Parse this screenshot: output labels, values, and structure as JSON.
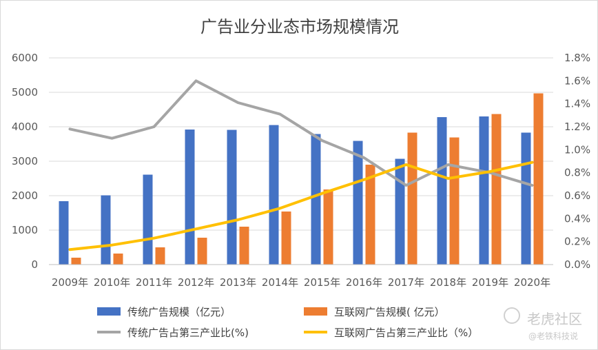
{
  "chart_data": {
    "type": "bar",
    "title": "广告业分业态市场规模情况",
    "categories": [
      "2009年",
      "2010年",
      "2011年",
      "2012年",
      "2013年",
      "2014年",
      "2015年",
      "2016年",
      "2017年",
      "2018年",
      "2019年",
      "2020年"
    ],
    "series": [
      {
        "name": "传统广告规模（亿元）",
        "kind": "bar",
        "axis": "left",
        "color": "#4472c4",
        "values": [
          1840,
          2010,
          2610,
          3920,
          3910,
          4050,
          3790,
          3590,
          3070,
          4280,
          4300,
          3830
        ]
      },
      {
        "name": "互联网广告规模( 亿元）",
        "kind": "bar",
        "axis": "left",
        "color": "#ed7d31",
        "values": [
          200,
          320,
          500,
          780,
          1100,
          1540,
          2180,
          2900,
          3830,
          3690,
          4370,
          4970
        ]
      },
      {
        "name": "传统广告占第三产业比(%)",
        "kind": "line",
        "axis": "right",
        "color": "#a5a5a5",
        "values": [
          1.18,
          1.1,
          1.2,
          1.6,
          1.41,
          1.31,
          1.08,
          0.93,
          0.69,
          0.87,
          0.8,
          0.69
        ]
      },
      {
        "name": "互联网广告占第三产业比（%）",
        "kind": "line",
        "axis": "right",
        "color": "#ffc000",
        "values": [
          0.13,
          0.17,
          0.23,
          0.31,
          0.39,
          0.49,
          0.62,
          0.74,
          0.87,
          0.75,
          0.81,
          0.89
        ]
      }
    ],
    "y_left": {
      "min": 0,
      "max": 6000,
      "ticks": [
        "0",
        "1000",
        "2000",
        "3000",
        "4000",
        "5000",
        "6000"
      ]
    },
    "y_right": {
      "min": 0,
      "max": 1.8,
      "ticks": [
        "0.0%",
        "0.2%",
        "0.4%",
        "0.6%",
        "0.8%",
        "1.0%",
        "1.2%",
        "1.4%",
        "1.6%",
        "1.8%"
      ]
    },
    "grid": true,
    "legend_position": "bottom"
  },
  "watermark": {
    "brand": "老虎社区",
    "handle": "@老铁科技说"
  }
}
